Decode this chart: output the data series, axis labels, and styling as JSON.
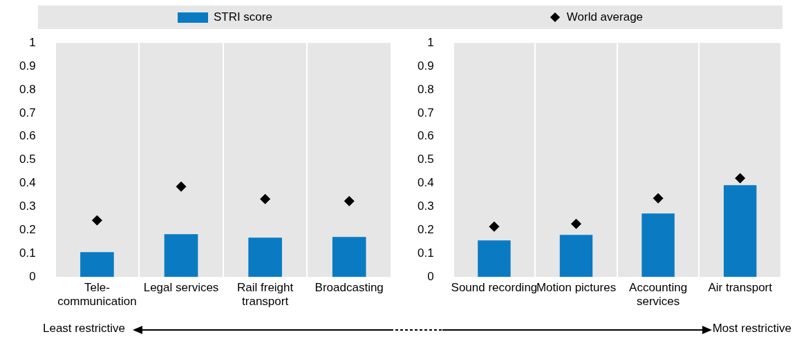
{
  "chart_data": [
    {
      "type": "bar",
      "categories": [
        "Tele-communication",
        "Legal services",
        "Rail freight transport",
        "Broadcasting"
      ],
      "series": [
        {
          "name": "STRI score",
          "color": "#0a7bc2",
          "values": [
            0.106,
            0.183,
            0.168,
            0.171
          ]
        },
        {
          "name": "World average",
          "type": "scatter",
          "color": "#000000",
          "x": [
            "Tele-communication",
            "Legal services",
            "Rail freight transport",
            "Broadcasting"
          ],
          "values": [
            0.242,
            0.386,
            0.333,
            0.324
          ]
        }
      ],
      "ylim": [
        0,
        1
      ],
      "yticks": [
        0,
        0.1,
        0.2,
        0.3,
        0.4,
        0.5,
        0.6,
        0.7,
        0.8,
        0.9,
        1
      ],
      "grid": "x",
      "legend": "top",
      "marker": "diamond",
      "annotations": [
        "Least restrictive"
      ]
    },
    {
      "type": "bar",
      "categories": [
        "Sound recording",
        "Motion pictures",
        "Accounting services",
        "Air transport"
      ],
      "series": [
        {
          "color": "#0a7bc2",
          "values": [
            0.156,
            0.18,
            0.271,
            0.392
          ]
        },
        {
          "type": "scatter",
          "color": "#000000",
          "x": [
            "Sound recording",
            "Motion pictures",
            "Accounting services",
            "Air transport"
          ],
          "values": [
            0.215,
            0.227,
            0.336,
            0.422
          ]
        }
      ],
      "ylim": [
        0,
        1
      ],
      "yticks": [
        0,
        0.1,
        0.2,
        0.3,
        0.4,
        0.5,
        0.6,
        0.7,
        0.8,
        0.9,
        1
      ],
      "grid": "x",
      "marker": "diamond",
      "annotations": [
        "Most restrictive"
      ]
    }
  ]
}
